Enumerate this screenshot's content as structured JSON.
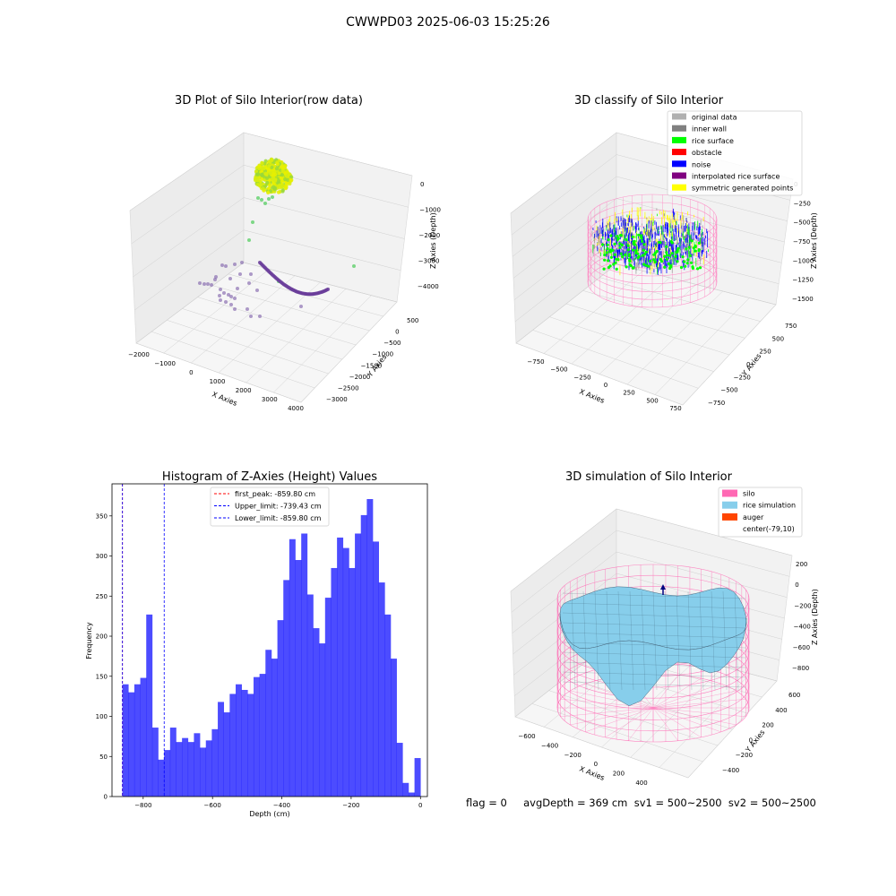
{
  "figure": {
    "suptitle": "CWWPD03 2025-06-03 15:25:26",
    "footer": "flag = 0     avgDepth = 369 cm  sv1 = 500~2500  sv2 = 500~2500"
  },
  "panels": {
    "raw": {
      "title": "3D Plot of Silo Interior(row data)",
      "xlabel": "X Axies",
      "ylabel": "Y Axies",
      "zlabel": "Z Axies (Depth)",
      "xticks": [
        "−2000",
        "−1000",
        "0",
        "1000",
        "2000",
        "3000",
        "4000"
      ],
      "yticks": [
        "500",
        "0",
        "−500",
        "−1000",
        "−1500",
        "−2000",
        "−2500",
        "−3000"
      ],
      "zticks": [
        "0",
        "−1000",
        "−2000",
        "−3000",
        "−4000"
      ]
    },
    "classify": {
      "title": "3D classify of Silo Interior",
      "xlabel": "X Axies",
      "ylabel": "Y Axies",
      "zlabel": "Z Axies (Depth)",
      "xticks": [
        "−750",
        "−500",
        "−250",
        "0",
        "250",
        "500",
        "750"
      ],
      "yticks": [
        "750",
        "500",
        "250",
        "0",
        "−250",
        "−500",
        "−750"
      ],
      "zticks": [
        "0",
        "−250",
        "−500",
        "−750",
        "−1000",
        "−1250",
        "−1500"
      ],
      "legend": [
        {
          "label": "original data",
          "color": "#b0b0b0"
        },
        {
          "label": "inner wall",
          "color": "#808080"
        },
        {
          "label": "rice surface",
          "color": "#00ff00"
        },
        {
          "label": "obstacle",
          "color": "#ff0000"
        },
        {
          "label": "noise",
          "color": "#0000ff"
        },
        {
          "label": "interpolated rice surface",
          "color": "#800080"
        },
        {
          "label": "symmetric generated points",
          "color": "#ffff00"
        }
      ]
    },
    "simulation": {
      "title": "3D simulation of Silo Interior",
      "xlabel": "X Axies",
      "ylabel": "Y Axies",
      "zlabel": "Z Axies (Depth)",
      "xticks": [
        "−600",
        "−400",
        "−200",
        "0",
        "200",
        "400"
      ],
      "yticks": [
        "600",
        "400",
        "200",
        "0",
        "−200",
        "−400"
      ],
      "zticks": [
        "200",
        "0",
        "−200",
        "−400",
        "−600",
        "−800"
      ],
      "legend": [
        {
          "label": "silo",
          "color": "#ff69b4"
        },
        {
          "label": "rice simulation",
          "color": "#87ceeb"
        },
        {
          "label": "auger",
          "color": "#ff4500"
        },
        {
          "label": "center(-79,10)",
          "color": "#ffffff"
        }
      ]
    }
  },
  "chart_data": {
    "type": "bar",
    "title": "Histogram of Z-Axies (Height) Values",
    "xlabel": "Depth (cm)",
    "ylabel": "Frequency",
    "xlim": [
      -890,
      20
    ],
    "ylim": [
      0,
      390
    ],
    "xticks": [
      -800,
      -600,
      -400,
      -200,
      0
    ],
    "yticks": [
      0,
      50,
      100,
      150,
      200,
      250,
      300,
      350
    ],
    "bin_start": -860,
    "bin_width": 17.2,
    "bar_color": "#0000ff",
    "values": [
      140,
      130,
      140,
      148,
      227,
      86,
      46,
      58,
      86,
      68,
      73,
      68,
      79,
      61,
      70,
      84,
      118,
      105,
      128,
      140,
      133,
      128,
      149,
      153,
      183,
      172,
      220,
      270,
      321,
      295,
      328,
      252,
      210,
      191,
      248,
      285,
      323,
      310,
      285,
      328,
      351,
      371,
      318,
      267,
      227,
      172,
      67,
      17,
      5,
      48
    ],
    "lines": [
      {
        "label": "first_peak: -859.80 cm",
        "x": -859.8,
        "color": "#ff0000"
      },
      {
        "label": "Upper_limit: -739.43 cm",
        "x": -739.43,
        "color": "#0000ff"
      },
      {
        "label": "Lower_limit: -859.80 cm",
        "x": -859.8,
        "color": "#0000ff"
      }
    ],
    "legend_position": "top-center"
  }
}
